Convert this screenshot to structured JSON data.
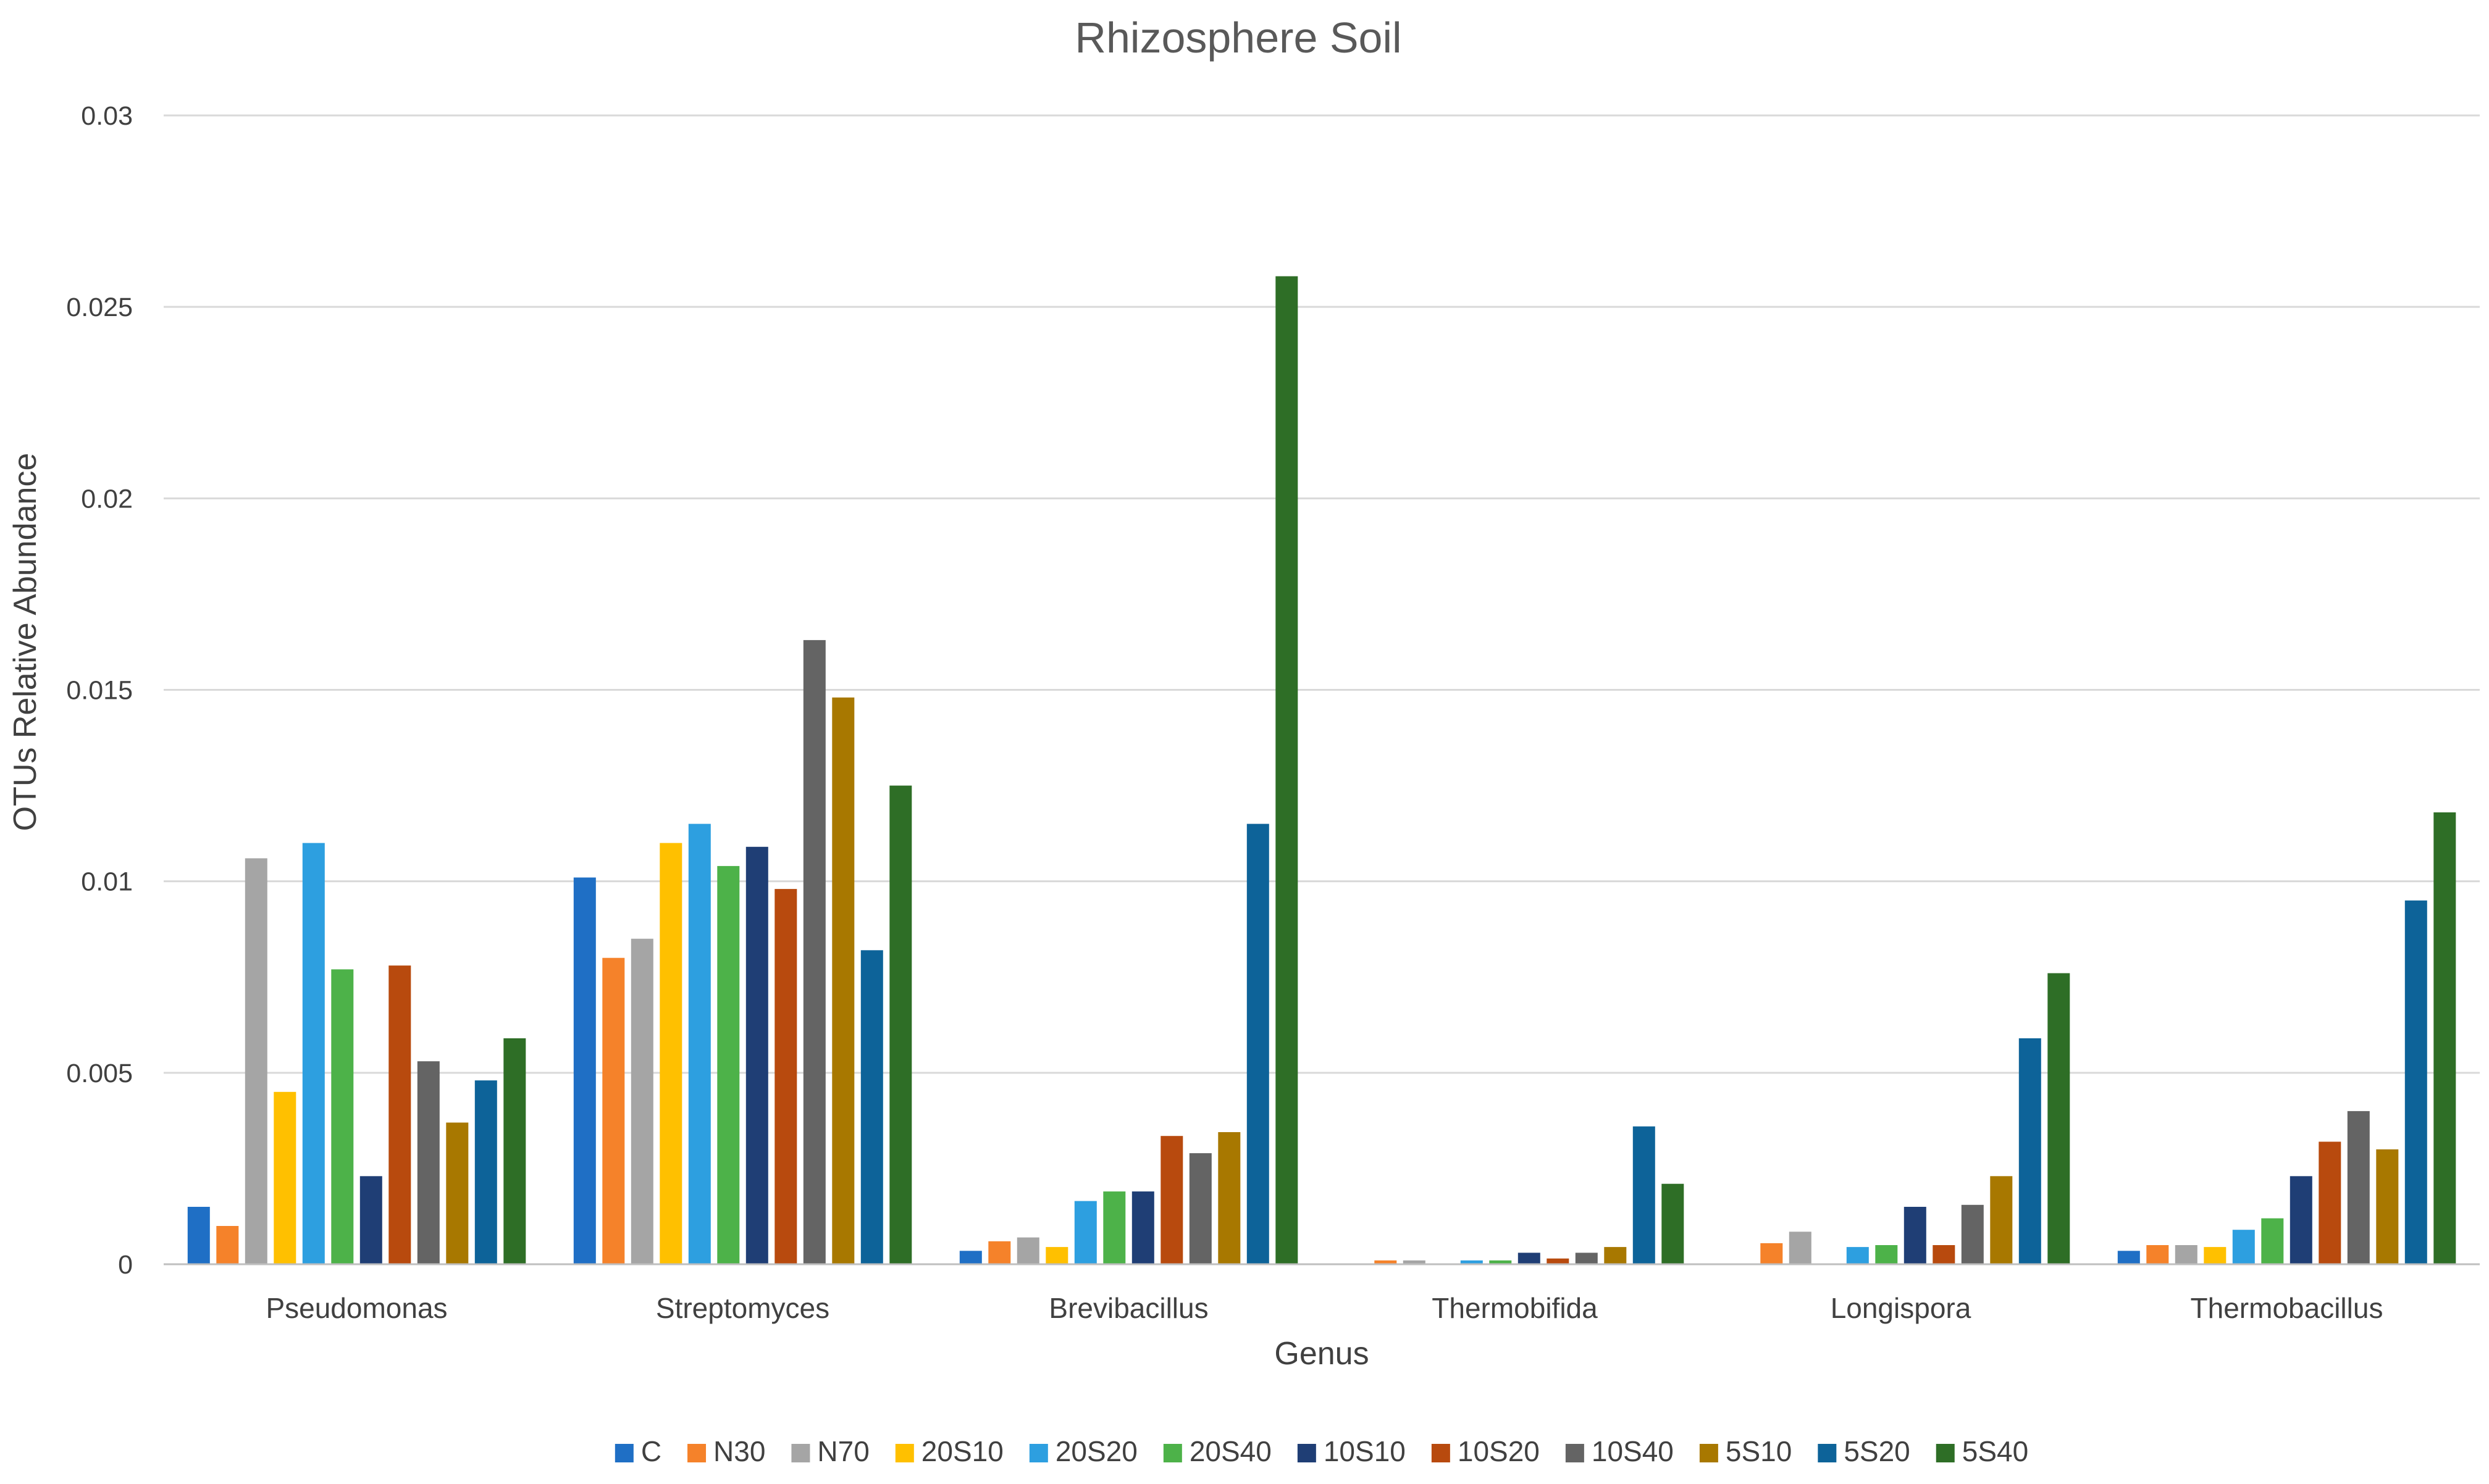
{
  "chart_data": {
    "type": "bar",
    "title": "Rhizosphere Soil",
    "xlabel": "Genus",
    "ylabel": "OTUs Relative Abundance",
    "ylim": [
      0,
      0.03
    ],
    "yticks": [
      "0",
      "0.005",
      "0.01",
      "0.015",
      "0.02",
      "0.025",
      "0.03"
    ],
    "grid": true,
    "legend_position": "bottom",
    "categories": [
      "Pseudomonas",
      "Streptomyces",
      "Brevibacillus",
      "Thermobifida",
      "Longispora",
      "Thermobacillus"
    ],
    "series": [
      {
        "name": "C",
        "color": "#1f6fc5",
        "values": [
          0.0015,
          0.0101,
          0.00035,
          0.0,
          0.0,
          0.00035
        ]
      },
      {
        "name": "N30",
        "color": "#f5822a",
        "values": [
          0.001,
          0.008,
          0.0006,
          0.0001,
          0.00055,
          0.0005
        ]
      },
      {
        "name": "N70",
        "color": "#a5a5a5",
        "values": [
          0.0106,
          0.0085,
          0.0007,
          0.0001,
          0.00085,
          0.0005
        ]
      },
      {
        "name": "20S10",
        "color": "#ffc000",
        "values": [
          0.0045,
          0.011,
          0.00045,
          0.0,
          0.0,
          0.00045
        ]
      },
      {
        "name": "20S20",
        "color": "#2d9fe0",
        "values": [
          0.011,
          0.0115,
          0.00165,
          0.0001,
          0.00045,
          0.0009
        ]
      },
      {
        "name": "20S40",
        "color": "#4db249",
        "values": [
          0.0077,
          0.0104,
          0.0019,
          0.0001,
          0.0005,
          0.0012
        ]
      },
      {
        "name": "10S10",
        "color": "#1f3e75",
        "values": [
          0.0023,
          0.0109,
          0.0019,
          0.0003,
          0.0015,
          0.0023
        ]
      },
      {
        "name": "10S20",
        "color": "#b84a0e",
        "values": [
          0.0078,
          0.0098,
          0.00335,
          0.00015,
          0.0005,
          0.0032
        ]
      },
      {
        "name": "10S40",
        "color": "#646464",
        "values": [
          0.0053,
          0.0163,
          0.0029,
          0.0003,
          0.00155,
          0.004
        ]
      },
      {
        "name": "5S10",
        "color": "#a87800",
        "values": [
          0.0037,
          0.0148,
          0.00345,
          0.00045,
          0.0023,
          0.003
        ]
      },
      {
        "name": "5S20",
        "color": "#0d6399",
        "values": [
          0.0048,
          0.0082,
          0.0115,
          0.0036,
          0.0059,
          0.0095
        ]
      },
      {
        "name": "5S40",
        "color": "#2e6e26",
        "values": [
          0.0059,
          0.0125,
          0.0258,
          0.0021,
          0.0076,
          0.0118
        ]
      }
    ]
  }
}
